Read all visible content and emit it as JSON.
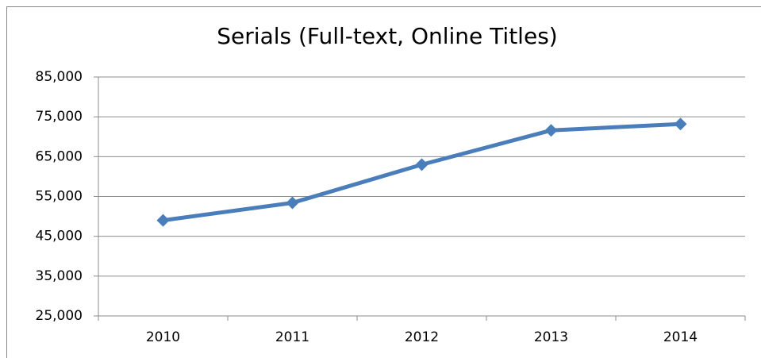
{
  "chart_data": {
    "type": "line",
    "title": "Serials (Full-text, Online Titles)",
    "categories": [
      "2010",
      "2011",
      "2012",
      "2013",
      "2014"
    ],
    "series": [
      {
        "name": "Serials",
        "color": "#4a7ebb",
        "values": [
          49000,
          53400,
          63000,
          71600,
          73200
        ]
      }
    ],
    "ylim": [
      25000,
      85000
    ],
    "yticks": [
      {
        "value": 25000,
        "label": "25,000"
      },
      {
        "value": 35000,
        "label": "35,000"
      },
      {
        "value": 45000,
        "label": "45,000"
      },
      {
        "value": 55000,
        "label": "55,000"
      },
      {
        "value": 65000,
        "label": "65,000"
      },
      {
        "value": 75000,
        "label": "75,000"
      },
      {
        "value": 85000,
        "label": "85,000"
      }
    ],
    "grid": true
  }
}
